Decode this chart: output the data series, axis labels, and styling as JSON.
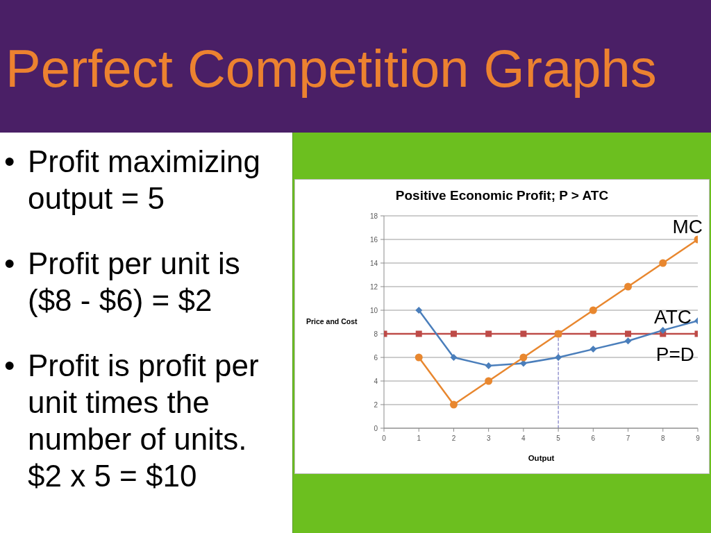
{
  "chart_data": {
    "type": "line",
    "title": "Perfect Competition Graphs",
    "subtitle": "Positive Economic Profit; P > ATC",
    "xlabel": "Output",
    "ylabel": "Price and Cost",
    "annotations": [
      "• Profit maximizing output = 5",
      "• Profit per unit is ($8 - $6) = $2",
      "• Profit is profit per unit times the number of units. $2 x 5 = $10"
    ],
    "xlim": [
      0,
      9
    ],
    "xticks": [
      0,
      1,
      2,
      3,
      4,
      5,
      6,
      7,
      8,
      9
    ],
    "ylim": [
      0,
      18
    ],
    "yticks": [
      0,
      2,
      4,
      6,
      8,
      10,
      12,
      14,
      16,
      18
    ],
    "grid": "y",
    "series": [
      {
        "name": "MC",
        "color": "#e8872f",
        "x": [
          1,
          2,
          3,
          4,
          5,
          6,
          7,
          8,
          9
        ],
        "values": [
          6,
          2,
          4,
          6,
          8,
          10,
          12,
          14,
          16
        ],
        "marker": "circle"
      },
      {
        "name": "ATC",
        "color": "#4a7ebb",
        "x": [
          1,
          2,
          3,
          4,
          5,
          6,
          7,
          8,
          9
        ],
        "values": [
          10,
          6,
          5.3,
          5.5,
          6,
          6.7,
          7.4,
          8.3,
          9.1
        ],
        "marker": "diamond"
      },
      {
        "name": "P=D",
        "color": "#be4b48",
        "x": [
          0,
          1,
          2,
          3,
          4,
          5,
          6,
          7,
          8,
          9
        ],
        "values": [
          8,
          8,
          8,
          8,
          8,
          8,
          8,
          8,
          8,
          8
        ],
        "marker": "square"
      },
      {
        "type": "line",
        "color": "#7b7bc4",
        "x": [
          5,
          5
        ],
        "values": [
          0,
          8
        ],
        "marker": "none",
        "line_style": "dashed"
      }
    ]
  }
}
